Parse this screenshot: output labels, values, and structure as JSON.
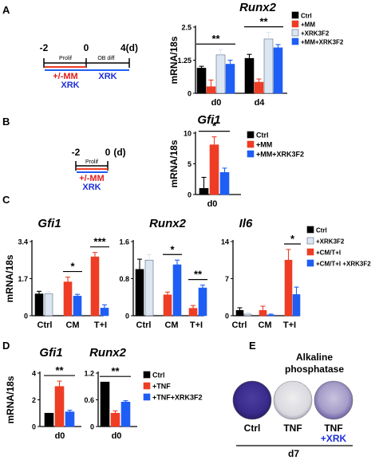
{
  "colors": {
    "ctrl": "#000000",
    "drug": "#ee3d24",
    "xrk": "#dce6f2",
    "combo": "#1e5ef5",
    "xrk_text": "#1c2fd8",
    "mm_text": "#e02020"
  },
  "panels": {
    "A": {
      "letter": "A",
      "timeline": {
        "ticks": [
          "-2",
          "0",
          "4(d)"
        ],
        "seg1": "Prolif",
        "seg2": "OB diff",
        "mm": "+/-MM",
        "xrk": "XRK"
      }
    },
    "B": {
      "letter": "B",
      "timeline": {
        "ticks": [
          "-2",
          "0",
          "(d)"
        ],
        "seg1": "Prolif",
        "mm": "+/-MM",
        "xrk": "XRK"
      }
    },
    "C": {
      "letter": "C"
    },
    "D": {
      "letter": "D"
    },
    "E": {
      "letter": "E",
      "title_line1": "Alkaline",
      "title_line2": "phosphatase",
      "wells": [
        {
          "label": "Ctrl",
          "stain": "dark"
        },
        {
          "label": "TNF",
          "stain": "light"
        },
        {
          "label": "TNF",
          "label2": "+XRK",
          "stain": "medium"
        }
      ],
      "footer": "d7"
    }
  },
  "chart_data": [
    {
      "id": "A",
      "type": "bar",
      "title": "Runx2",
      "ylabel": "mRNA/18s",
      "ylim": [
        0,
        2.5
      ],
      "yticks": [
        "0",
        "1.25",
        "2.5"
      ],
      "categories": [
        "d0",
        "d4"
      ],
      "legend": [
        "Ctrl",
        "+MM",
        "+XRK3F2",
        "+MM+XRK3F2"
      ],
      "series": [
        {
          "name": "Ctrl",
          "values": [
            0.95,
            1.32
          ],
          "errors": [
            0.07,
            0.15
          ]
        },
        {
          "name": "+MM",
          "values": [
            0.25,
            0.42
          ],
          "errors": [
            0.25,
            0.12
          ]
        },
        {
          "name": "+XRK3F2",
          "values": [
            1.45,
            2.05
          ],
          "errors": [
            0.2,
            0.25
          ]
        },
        {
          "name": "+MM+XRK3F2",
          "values": [
            1.1,
            1.72
          ],
          "errors": [
            0.15,
            0.12
          ]
        }
      ],
      "annotations": [
        {
          "text": "**",
          "group": 0
        },
        {
          "text": "**",
          "group": 1
        }
      ]
    },
    {
      "id": "B",
      "type": "bar",
      "title": "Gfi1",
      "ylabel": "mRNA/18s",
      "ylim": [
        0,
        10
      ],
      "yticks": [
        "0",
        "5",
        "10"
      ],
      "categories": [
        "d0"
      ],
      "legend": [
        "Ctrl",
        "+MM",
        "+MM+XRK3F2"
      ],
      "series": [
        {
          "name": "Ctrl",
          "values": [
            1.0
          ],
          "errors": [
            1.8
          ]
        },
        {
          "name": "+MM",
          "values": [
            8.1
          ],
          "errors": [
            1.3
          ]
        },
        {
          "name": "+MM+XRK3F2",
          "values": [
            3.6
          ],
          "errors": [
            0.7
          ]
        }
      ],
      "annotations": [
        {
          "text": "*",
          "group": 0
        }
      ]
    },
    {
      "id": "C1",
      "type": "bar",
      "title": "Gfi1",
      "ylabel": "mRNA/18s",
      "ylim": [
        0,
        3.4
      ],
      "yticks": [
        "0",
        "1.7",
        "3.4"
      ],
      "categories": [
        "Ctrl",
        "CM",
        "T+I"
      ],
      "series": [
        {
          "name": "Ctrl",
          "values": [
            1.0,
            null,
            null
          ],
          "errors": [
            0.12,
            null,
            null
          ]
        },
        {
          "name": "+XRK3F2",
          "values": [
            1.0,
            null,
            null
          ],
          "errors": [
            0.1,
            null,
            null
          ]
        },
        {
          "name": "+CM/T+I",
          "values": [
            null,
            1.55,
            2.7
          ],
          "errors": [
            null,
            0.22,
            0.2
          ]
        },
        {
          "name": "+CM/T+I +XRK3F2",
          "values": [
            null,
            0.9,
            0.35
          ],
          "errors": [
            null,
            0.08,
            0.15
          ]
        }
      ],
      "annotations": [
        {
          "text": "*",
          "group": 1
        },
        {
          "text": "***",
          "group": 2
        }
      ]
    },
    {
      "id": "C2",
      "type": "bar",
      "title": "Runx2",
      "ylim": [
        0,
        1.6
      ],
      "yticks": [
        "0",
        "0.8",
        "1.6"
      ],
      "categories": [
        "Ctrl",
        "CM",
        "T+I"
      ],
      "series": [
        {
          "name": "Ctrl",
          "values": [
            1.0,
            null,
            null
          ],
          "errors": [
            0.22,
            null,
            null
          ]
        },
        {
          "name": "+XRK3F2",
          "values": [
            1.2,
            null,
            null
          ],
          "errors": [
            0.12,
            null,
            null
          ]
        },
        {
          "name": "+CM/T+I",
          "values": [
            null,
            0.45,
            0.16
          ],
          "errors": [
            null,
            0.06,
            0.06
          ]
        },
        {
          "name": "+CM/T+I +XRK3F2",
          "values": [
            null,
            1.1,
            0.6
          ],
          "errors": [
            null,
            0.1,
            0.06
          ]
        }
      ],
      "annotations": [
        {
          "text": "*",
          "group": 1
        },
        {
          "text": "**",
          "group": 2
        }
      ]
    },
    {
      "id": "C3",
      "type": "bar",
      "title": "Il6",
      "ylim": [
        0,
        14
      ],
      "yticks": [
        "0",
        "7",
        "14"
      ],
      "categories": [
        "Ctrl",
        "CM",
        "T+I"
      ],
      "legend": [
        "Ctrl",
        "+XRK3F2",
        "+CM/T+I",
        "+CM/T+I +XRK3F2"
      ],
      "series": [
        {
          "name": "Ctrl",
          "values": [
            1.0,
            null,
            null
          ],
          "errors": [
            0.5,
            null,
            null
          ]
        },
        {
          "name": "+XRK3F2",
          "values": [
            0.3,
            null,
            null
          ],
          "errors": [
            0.3,
            null,
            null
          ]
        },
        {
          "name": "+CM/T+I",
          "values": [
            null,
            1.0,
            10.5
          ],
          "errors": [
            null,
            0.8,
            2.0
          ]
        },
        {
          "name": "+CM/T+I +XRK3F2",
          "values": [
            null,
            0.15,
            4.0
          ],
          "errors": [
            null,
            0.15,
            1.4
          ]
        }
      ],
      "annotations": [
        {
          "text": "*",
          "group": 2
        }
      ]
    },
    {
      "id": "D1",
      "type": "bar",
      "title": "Gfi1",
      "ylabel": "mRNA/18s",
      "ylim": [
        0,
        4
      ],
      "yticks": [
        "0",
        "2",
        "4"
      ],
      "categories": [
        "d0"
      ],
      "series": [
        {
          "name": "Ctrl",
          "values": [
            1.0
          ],
          "errors": [
            0.0
          ]
        },
        {
          "name": "+TNF",
          "values": [
            3.0
          ],
          "errors": [
            0.4
          ]
        },
        {
          "name": "+TNF+XRK3F2",
          "values": [
            1.1
          ],
          "errors": [
            0.12
          ]
        }
      ],
      "annotations": [
        {
          "text": "**",
          "group": 0
        }
      ]
    },
    {
      "id": "D2",
      "type": "bar",
      "title": "Runx2",
      "ylim": [
        0,
        1.2
      ],
      "yticks": [
        "0",
        "0.6",
        "1.2"
      ],
      "categories": [
        "d0"
      ],
      "legend": [
        "Ctrl",
        "+TNF",
        "+TNF+XRK3F2"
      ],
      "series": [
        {
          "name": "Ctrl",
          "values": [
            1.0
          ],
          "errors": [
            0.0
          ]
        },
        {
          "name": "+TNF",
          "values": [
            0.3
          ],
          "errors": [
            0.05
          ]
        },
        {
          "name": "+TNF+XRK3F2",
          "values": [
            0.55
          ],
          "errors": [
            0.03
          ]
        }
      ],
      "annotations": [
        {
          "text": "**",
          "group": 0
        }
      ]
    }
  ]
}
